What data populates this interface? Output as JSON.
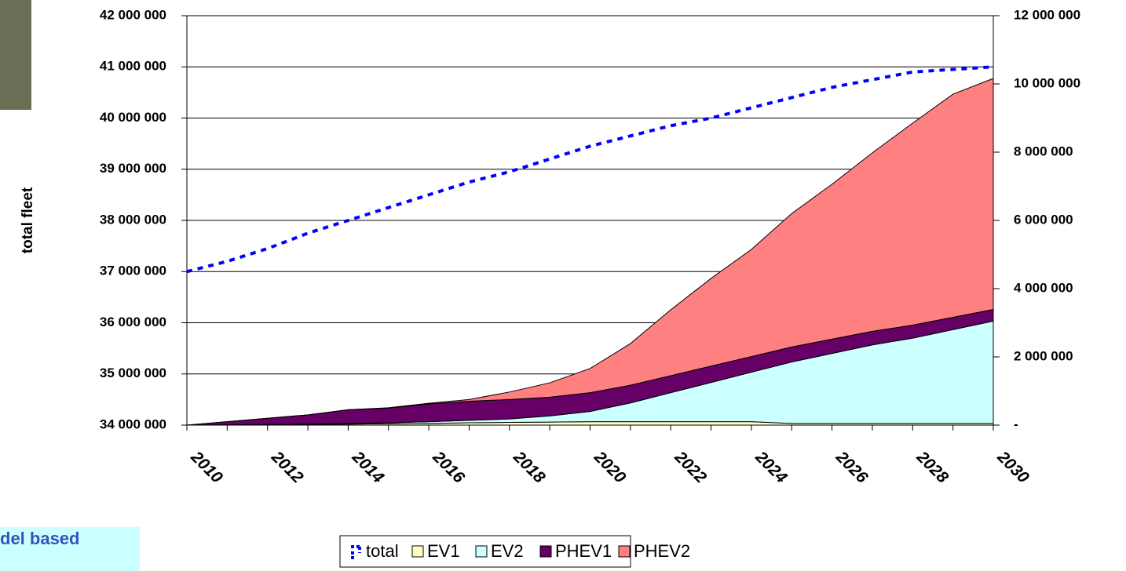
{
  "caption": "del based",
  "chart_data": {
    "type": "stacked-area-line",
    "ylabel": "total fleet",
    "x": [
      2010,
      2011,
      2012,
      2013,
      2014,
      2015,
      2016,
      2017,
      2018,
      2019,
      2020,
      2021,
      2022,
      2023,
      2024,
      2025,
      2026,
      2027,
      2028,
      2029,
      2030
    ],
    "xlim": [
      2010,
      2030
    ],
    "xticks": [
      2010,
      2012,
      2014,
      2016,
      2018,
      2020,
      2022,
      2024,
      2026,
      2028,
      2030
    ],
    "ylim": [
      34000000,
      42000000
    ],
    "yticks": [
      {
        "value": 34000000,
        "label": "34 000 000"
      },
      {
        "value": 35000000,
        "label": "35 000 000"
      },
      {
        "value": 36000000,
        "label": "36 000 000"
      },
      {
        "value": 37000000,
        "label": "37 000 000"
      },
      {
        "value": 38000000,
        "label": "38 000 000"
      },
      {
        "value": 39000000,
        "label": "39 000 000"
      },
      {
        "value": 40000000,
        "label": "40 000 000"
      },
      {
        "value": 41000000,
        "label": "41 000 000"
      },
      {
        "value": 42000000,
        "label": "42 000 000"
      }
    ],
    "y2lim": [
      0,
      12000000
    ],
    "y2ticks": [
      {
        "value": 0,
        "label": "-"
      },
      {
        "value": 2000000,
        "label": "2 000 000"
      },
      {
        "value": 4000000,
        "label": "4 000 000"
      },
      {
        "value": 6000000,
        "label": "6 000 000"
      },
      {
        "value": 8000000,
        "label": "8 000 000"
      },
      {
        "value": 10000000,
        "label": "10 000 000"
      },
      {
        "value": 12000000,
        "label": "12 000 000"
      }
    ],
    "grid": true,
    "legend": "bottom",
    "series": [
      {
        "name": "total",
        "color": "#0000ff",
        "style": "dashed",
        "axis": "y",
        "values": [
          37000000,
          37200000,
          37450000,
          37750000,
          38000000,
          38250000,
          38500000,
          38750000,
          38950000,
          39200000,
          39450000,
          39650000,
          39850000,
          40000000,
          40200000,
          40400000,
          40600000,
          40750000,
          40900000,
          40950000,
          41000000
        ]
      },
      {
        "name": "EV1",
        "color": "#ffffc4",
        "axis": "y2",
        "stacked": true,
        "values": [
          0,
          10000,
          20000,
          20000,
          30000,
          40000,
          50000,
          70000,
          80000,
          90000,
          100000,
          100000,
          100000,
          100000,
          100000,
          50000,
          50000,
          50000,
          50000,
          50000,
          50000
        ]
      },
      {
        "name": "EV2",
        "color": "#ccffff",
        "axis": "y2",
        "stacked": true,
        "values": [
          0,
          0,
          0,
          10000,
          20000,
          30000,
          50000,
          70000,
          100000,
          180000,
          300000,
          550000,
          850000,
          1150000,
          1450000,
          1800000,
          2050000,
          2300000,
          2500000,
          2750000,
          3000000
        ]
      },
      {
        "name": "PHEV1",
        "color": "#660066",
        "axis": "y2",
        "stacked": true,
        "values": [
          0,
          90000,
          180000,
          270000,
          400000,
          430000,
          520000,
          560000,
          570000,
          550000,
          550000,
          520000,
          500000,
          480000,
          460000,
          440000,
          420000,
          400000,
          380000,
          360000,
          340000
        ]
      },
      {
        "name": "PHEV2",
        "color": "#ff8080",
        "axis": "y2",
        "stacked": true,
        "values": [
          0,
          0,
          0,
          0,
          0,
          10000,
          20000,
          50000,
          220000,
          420000,
          710000,
          1220000,
          1930000,
          2570000,
          3140000,
          3910000,
          4540000,
          5230000,
          5920000,
          6540000,
          6770000
        ]
      }
    ]
  }
}
